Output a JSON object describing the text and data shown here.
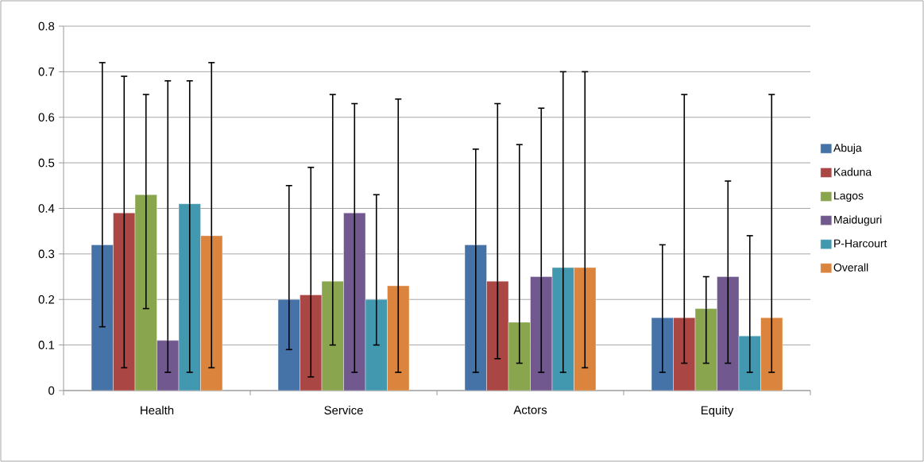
{
  "chart_data": {
    "type": "bar",
    "categories": [
      "Health",
      "Service",
      "Actors",
      "Equity"
    ],
    "series": [
      {
        "name": "Abuja",
        "color": "#4572a7",
        "values": [
          0.32,
          0.2,
          0.32,
          0.16
        ],
        "errors": [
          [
            0.14,
            0.72
          ],
          [
            0.09,
            0.45
          ],
          [
            0.04,
            0.53
          ],
          [
            0.04,
            0.32
          ]
        ]
      },
      {
        "name": "Kaduna",
        "color": "#aa4643",
        "values": [
          0.39,
          0.21,
          0.24,
          0.16
        ],
        "errors": [
          [
            0.05,
            0.69
          ],
          [
            0.03,
            0.49
          ],
          [
            0.07,
            0.63
          ],
          [
            0.06,
            0.65
          ]
        ]
      },
      {
        "name": "Lagos",
        "color": "#89a54e",
        "values": [
          0.43,
          0.24,
          0.15,
          0.18
        ],
        "errors": [
          [
            0.18,
            0.65
          ],
          [
            0.1,
            0.65
          ],
          [
            0.06,
            0.54
          ],
          [
            0.06,
            0.25
          ]
        ]
      },
      {
        "name": "Maiduguri",
        "color": "#71588f",
        "values": [
          0.11,
          0.39,
          0.25,
          0.25
        ],
        "errors": [
          [
            0.04,
            0.68
          ],
          [
            0.04,
            0.63
          ],
          [
            0.04,
            0.62
          ],
          [
            0.06,
            0.46
          ]
        ]
      },
      {
        "name": "P-Harcourt",
        "color": "#4198af",
        "values": [
          0.41,
          0.2,
          0.27,
          0.12
        ],
        "errors": [
          [
            0.04,
            0.68
          ],
          [
            0.1,
            0.43
          ],
          [
            0.04,
            0.7
          ],
          [
            0.04,
            0.34
          ]
        ]
      },
      {
        "name": "Overall",
        "color": "#db843d",
        "values": [
          0.34,
          0.23,
          0.27,
          0.16
        ],
        "errors": [
          [
            0.05,
            0.72
          ],
          [
            0.04,
            0.64
          ],
          [
            0.05,
            0.7
          ],
          [
            0.04,
            0.65
          ]
        ]
      }
    ],
    "ylim": [
      0,
      0.8
    ],
    "yticks": [
      0,
      0.1,
      0.2,
      0.3,
      0.4,
      0.5,
      0.6,
      0.7,
      0.8
    ],
    "grid": "y",
    "legend": "right"
  }
}
